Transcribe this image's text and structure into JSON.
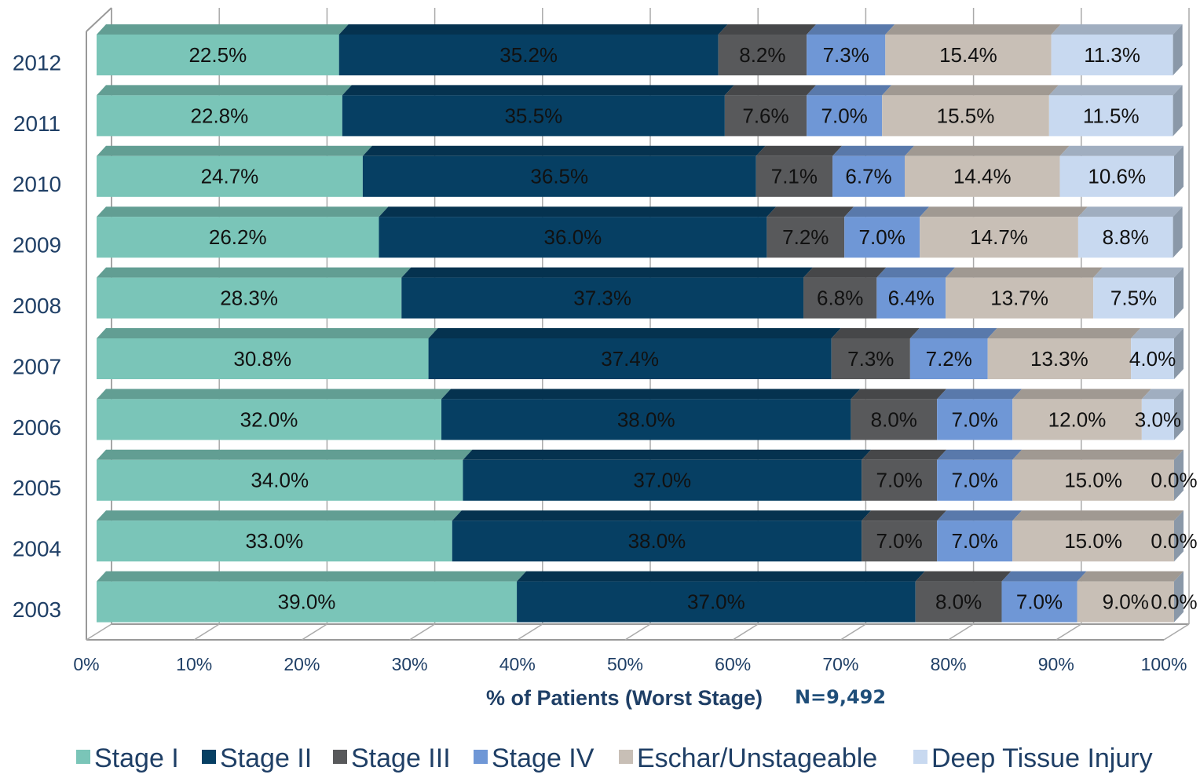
{
  "chart_data": {
    "type": "stacked_bar_horizontal_100",
    "x_label": "% of Patients (Worst Stage)",
    "annotation": "N=9,492",
    "categories": [
      "2012",
      "2011",
      "2010",
      "2009",
      "2008",
      "2007",
      "2006",
      "2005",
      "2004",
      "2003"
    ],
    "series": [
      {
        "name": "Stage I",
        "color": "#7ac5b8",
        "values": [
          22.5,
          22.8,
          24.7,
          26.2,
          28.3,
          30.8,
          32.0,
          34.0,
          33.0,
          39.0
        ],
        "value_labels": [
          "22.5%",
          "22.8%",
          "24.7%",
          "26.2%",
          "28.3%",
          "30.8%",
          "32.0%",
          "34.0%",
          "33.0%",
          "39.0%"
        ]
      },
      {
        "name": "Stage II",
        "color": "#063f63",
        "values": [
          35.2,
          35.5,
          36.5,
          36.0,
          37.3,
          37.4,
          38.0,
          37.0,
          38.0,
          37.0
        ],
        "value_labels": [
          "35.2%",
          "35.5%",
          "36.5%",
          "36.0%",
          "37.3%",
          "37.4%",
          "38.0%",
          "37.0%",
          "38.0%",
          "37.0%"
        ]
      },
      {
        "name": "Stage III",
        "color": "#58595b",
        "values": [
          8.2,
          7.6,
          7.1,
          7.2,
          6.8,
          7.3,
          8.0,
          7.0,
          7.0,
          8.0
        ],
        "value_labels": [
          "8.2%",
          "7.6%",
          "7.1%",
          "7.2%",
          "6.8%",
          "7.3%",
          "8.0%",
          "7.0%",
          "7.0%",
          "8.0%"
        ]
      },
      {
        "name": "Stage IV",
        "color": "#6f97d6",
        "values": [
          7.3,
          7.0,
          6.7,
          7.0,
          6.4,
          7.2,
          7.0,
          7.0,
          7.0,
          7.0
        ],
        "value_labels": [
          "7.3%",
          "7.0%",
          "6.7%",
          "7.0%",
          "6.4%",
          "7.2%",
          "7.0%",
          "7.0%",
          "7.0%",
          "7.0%"
        ]
      },
      {
        "name": "Eschar/Unstageable",
        "color": "#c8bfb6",
        "values": [
          15.4,
          15.5,
          14.4,
          14.7,
          13.7,
          13.3,
          12.0,
          15.0,
          15.0,
          9.0
        ],
        "value_labels": [
          "15.4%",
          "15.5%",
          "14.4%",
          "14.7%",
          "13.7%",
          "13.3%",
          "12.0%",
          "15.0%",
          "15.0%",
          "9.0%"
        ]
      },
      {
        "name": "Deep Tissue Injury",
        "color": "#c8d9f0",
        "values": [
          11.3,
          11.5,
          10.6,
          8.8,
          7.5,
          4.0,
          3.0,
          0.0,
          0.0,
          0.0
        ],
        "value_labels": [
          "11.3%",
          "11.5%",
          "10.6%",
          "8.8%",
          "7.5%",
          "4.0%",
          "3.0%",
          "0.0%",
          "0.0%",
          "0.0%"
        ]
      }
    ],
    "xlim": [
      0,
      100
    ],
    "xticks": [
      {
        "value": 0,
        "label": "0%"
      },
      {
        "value": 10,
        "label": "10%"
      },
      {
        "value": 20,
        "label": "20%"
      },
      {
        "value": 30,
        "label": "30%"
      },
      {
        "value": 40,
        "label": "40%"
      },
      {
        "value": 50,
        "label": "50%"
      },
      {
        "value": 60,
        "label": "60%"
      },
      {
        "value": 70,
        "label": "70%"
      },
      {
        "value": 80,
        "label": "80%"
      },
      {
        "value": 90,
        "label": "90%"
      },
      {
        "value": 100,
        "label": "100%"
      }
    ],
    "grid": true,
    "legend": "bottom"
  }
}
